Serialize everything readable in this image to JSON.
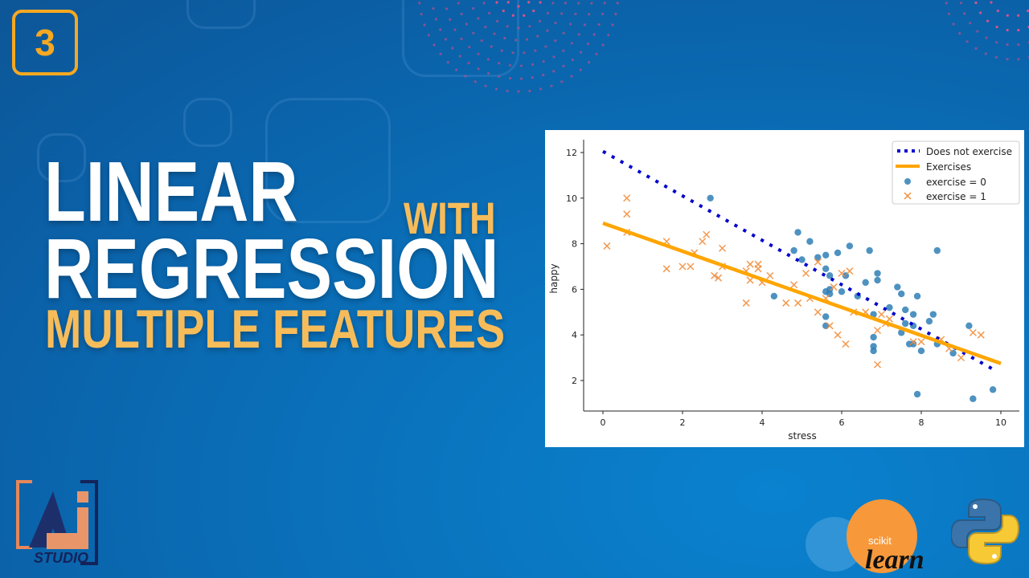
{
  "badge": {
    "number": "3"
  },
  "title": {
    "line1": "LINEAR",
    "with": "WITH",
    "line2": "REGRESSION",
    "line3": "MULTIPLE FEATURES"
  },
  "logos": {
    "ai_studio": "STUDIO",
    "sklearn_top": "scikit",
    "sklearn_bottom": "learn"
  },
  "colors": {
    "accent_orange": "#f6a821",
    "title_yellow": "#f7bc5a",
    "line_blue": "#0000cc",
    "line_orange": "#ffa500",
    "point_blue": "#2f7fb6",
    "point_orange": "#f28e3c"
  },
  "chart_data": {
    "type": "scatter",
    "xlabel": "stress",
    "ylabel": "happy",
    "xlim": [
      -0.6,
      10.6
    ],
    "ylim": [
      0.6,
      12.6
    ],
    "xticks": [
      0,
      2,
      4,
      6,
      8,
      10
    ],
    "yticks": [
      2,
      4,
      6,
      8,
      10,
      12
    ],
    "grid": false,
    "legend_position": "top-right",
    "lines": [
      {
        "name": "Does not exercise",
        "style": "dotted",
        "color": "#0000cc",
        "x": [
          0,
          9.9
        ],
        "y": [
          12.05,
          2.4
        ]
      },
      {
        "name": "Exercises",
        "style": "solid",
        "color": "#ffa500",
        "x": [
          0,
          10
        ],
        "y": [
          8.9,
          2.75
        ]
      }
    ],
    "series": [
      {
        "name": "exercise = 0",
        "marker": "circle",
        "color": "#2f7fb6",
        "x": [
          2.7,
          4.3,
          4.9,
          5.2,
          4.8,
          5.0,
          5.4,
          5.6,
          5.9,
          6.2,
          6.7,
          8.4,
          5.6,
          5.7,
          6.1,
          6.9,
          6.9,
          6.6,
          5.6,
          5.7,
          5.7,
          6.0,
          6.4,
          7.4,
          7.5,
          7.9,
          7.2,
          6.8,
          7.6,
          7.8,
          8.3,
          8.2,
          7.6,
          7.8,
          5.6,
          5.6,
          7.5,
          6.8,
          6.8,
          6.8,
          7.7,
          7.8,
          8.0,
          8.4,
          8.8,
          9.2,
          7.9,
          9.3,
          9.8
        ],
        "y": [
          10.0,
          5.7,
          8.5,
          8.1,
          7.7,
          7.3,
          7.4,
          7.5,
          7.6,
          7.9,
          7.7,
          7.7,
          6.9,
          6.6,
          6.6,
          6.7,
          6.4,
          6.3,
          5.9,
          6.0,
          5.8,
          5.9,
          5.7,
          6.1,
          5.8,
          5.7,
          5.2,
          4.9,
          5.1,
          4.9,
          4.9,
          4.6,
          4.5,
          4.4,
          4.8,
          4.4,
          4.1,
          3.9,
          3.5,
          3.3,
          3.6,
          3.6,
          3.3,
          3.6,
          3.2,
          4.4,
          1.4,
          1.2,
          1.6
        ]
      },
      {
        "name": "exercise = 1",
        "marker": "x",
        "color": "#f28e3c",
        "x": [
          0.1,
          0.6,
          0.6,
          0.6,
          1.6,
          1.6,
          2.0,
          2.2,
          2.3,
          2.5,
          2.6,
          3.0,
          3.0,
          2.8,
          2.9,
          3.6,
          3.7,
          3.7,
          3.9,
          3.9,
          4.0,
          4.2,
          3.6,
          4.6,
          4.9,
          4.8,
          5.1,
          5.2,
          5.4,
          5.4,
          5.6,
          5.7,
          5.8,
          5.9,
          6.0,
          6.2,
          6.1,
          6.3,
          6.6,
          6.9,
          6.9,
          7.0,
          7.1,
          7.2,
          7.8,
          8.0,
          8.5,
          8.7,
          9.0,
          9.3,
          9.5
        ],
        "y": [
          7.9,
          10.0,
          9.3,
          8.5,
          8.1,
          6.9,
          7.0,
          7.0,
          7.6,
          8.1,
          8.4,
          7.8,
          7.0,
          6.6,
          6.5,
          6.8,
          7.1,
          6.4,
          7.1,
          6.9,
          6.3,
          6.6,
          5.4,
          5.4,
          5.4,
          6.2,
          6.7,
          5.6,
          7.2,
          5.0,
          5.6,
          4.4,
          6.1,
          4.0,
          6.7,
          6.8,
          3.6,
          5.0,
          5.0,
          4.2,
          2.7,
          4.9,
          4.5,
          4.7,
          3.7,
          3.7,
          3.8,
          3.4,
          3.0,
          4.1,
          4.0
        ]
      }
    ]
  }
}
